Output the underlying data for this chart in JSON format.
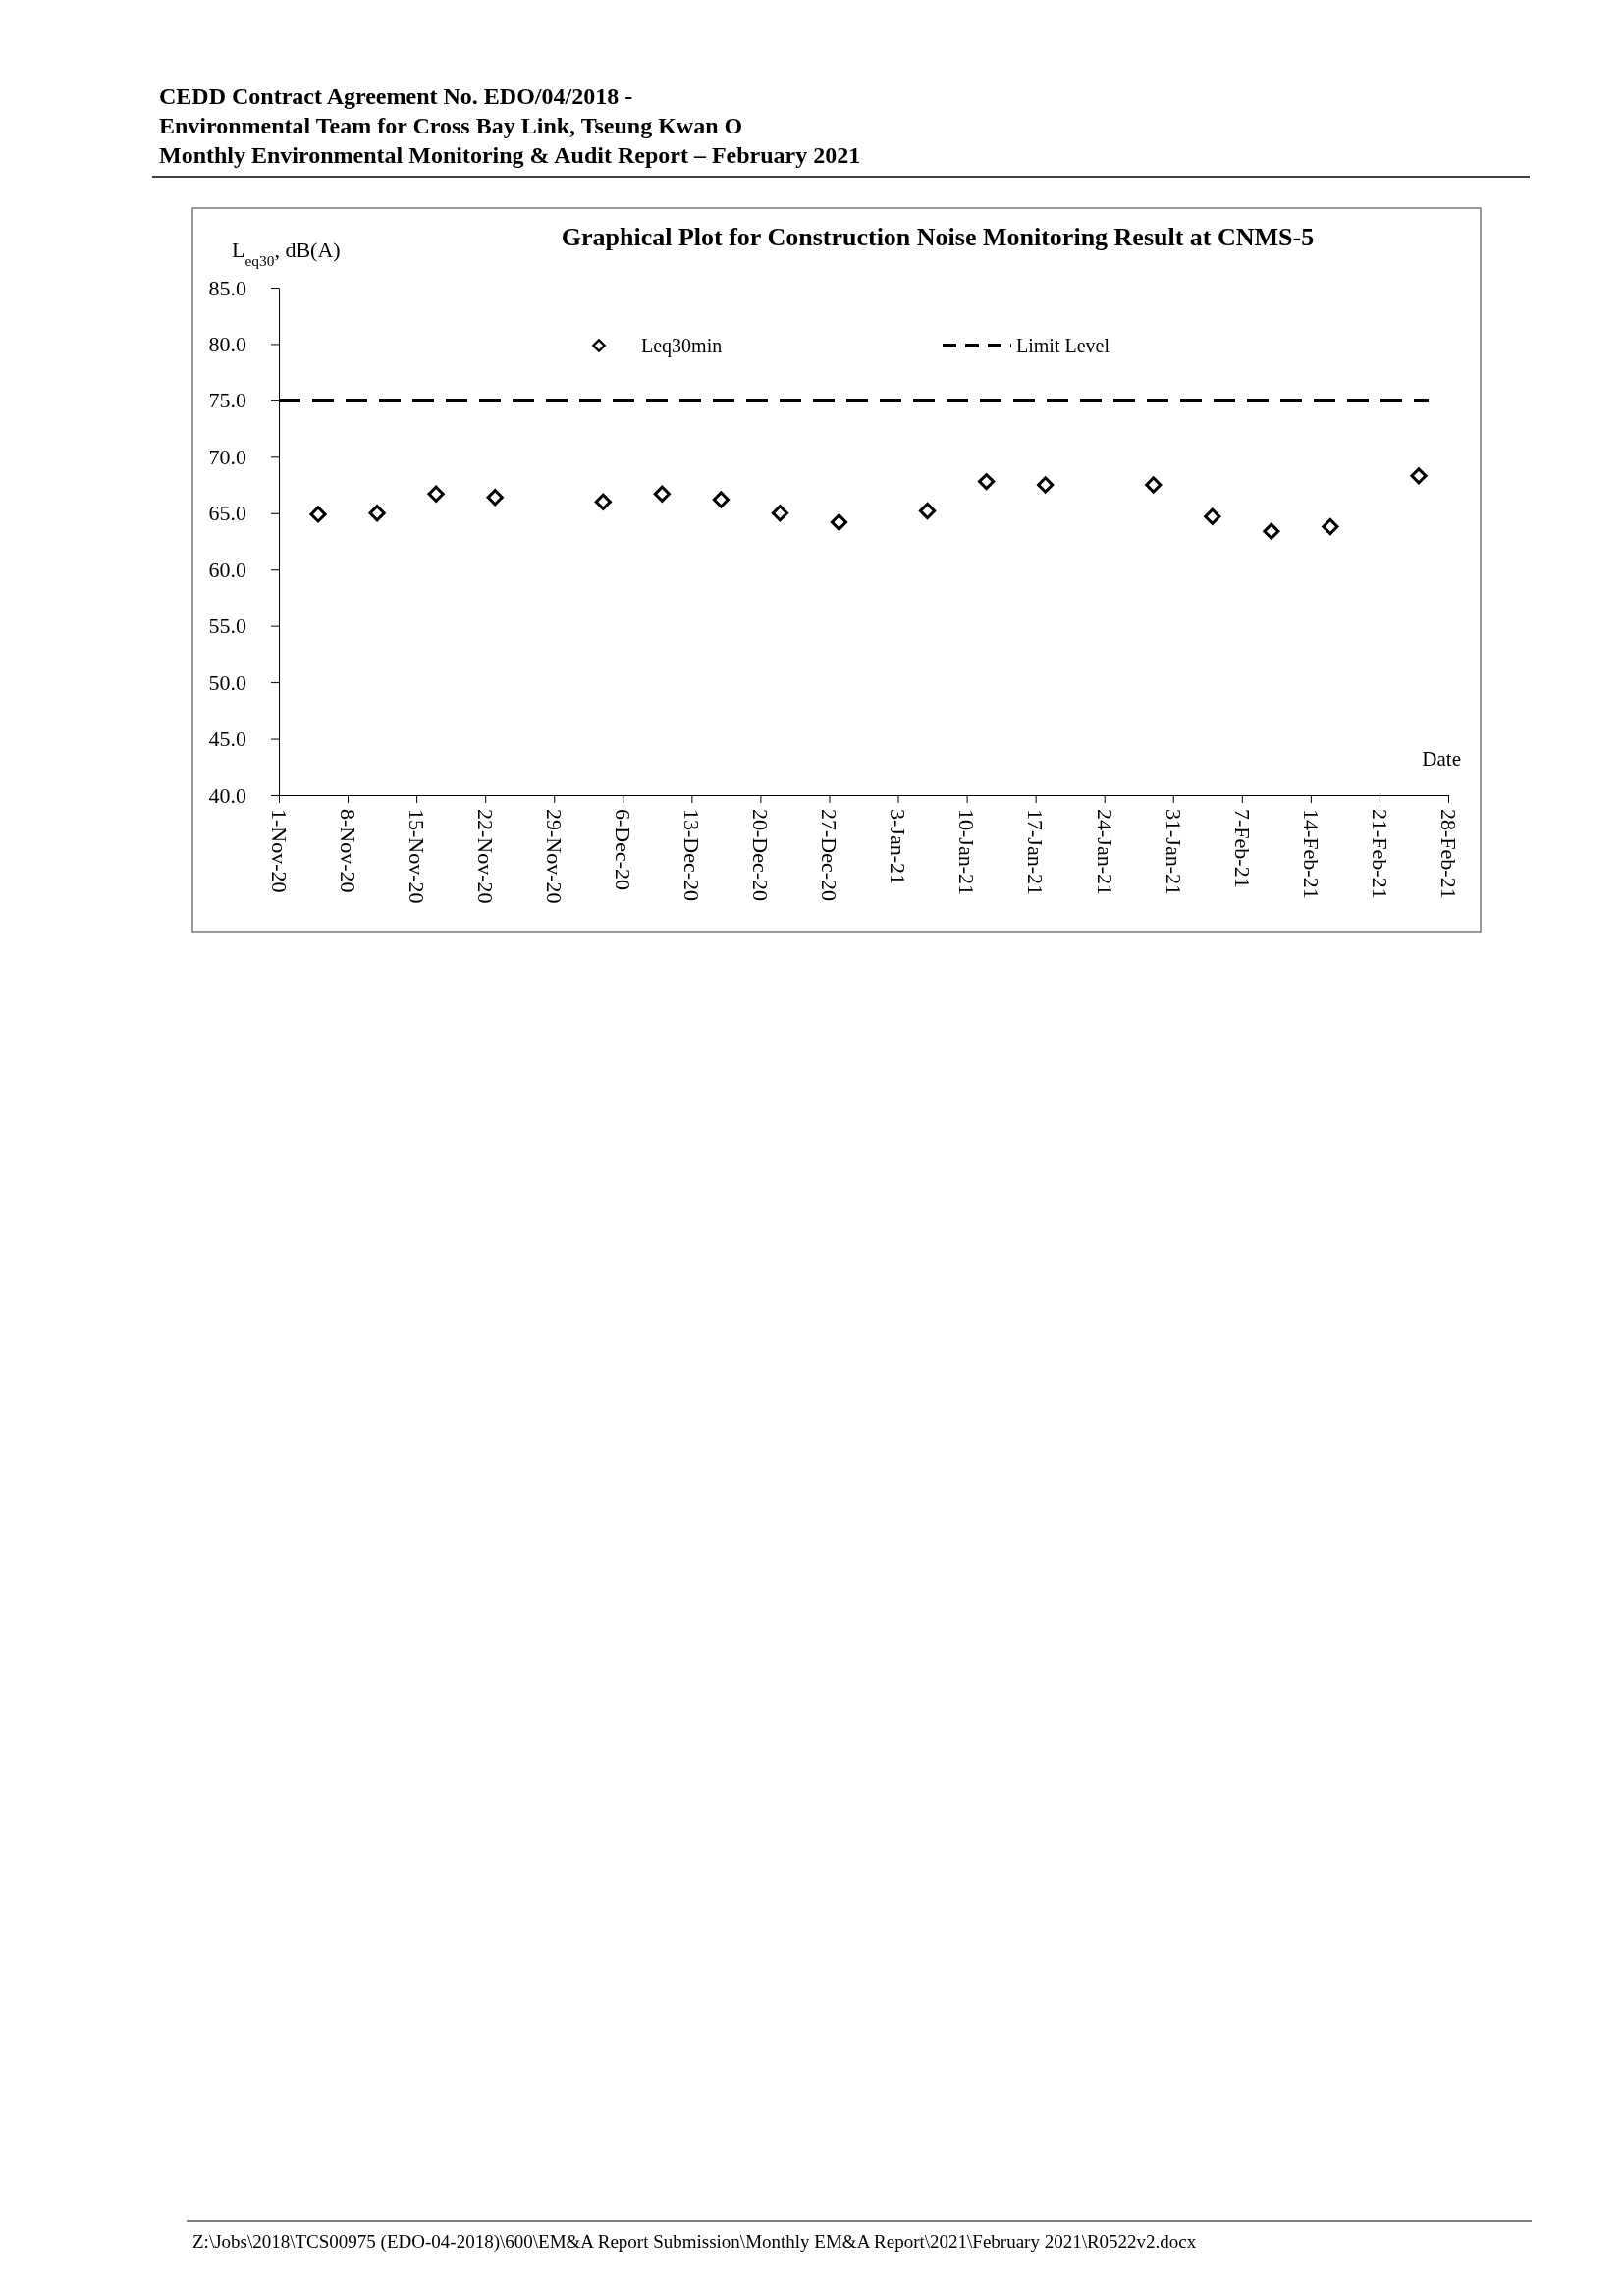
{
  "chart_data": {
    "type": "scatter",
    "title": "Graphical Plot for Construction Noise Monitoring Result at CNMS-5",
    "ylabel": "L$_{eq30}$, dB(A)",
    "xlabel": "Date",
    "annotations": [
      "CEDD Contract Agreement No. EDO/04/2018 -",
      "Environmental Team for Cross Bay Link, Tseung Kwan O",
      "Monthly Environmental Monitoring & Audit Report – February 2021",
      "Z:\\Jobs\\2018\\TCS00975 (EDO-04-2018)\\600\\EM&A Report Submission\\Monthly EM&A Report\\2021\\February 2021\\R0522v2.docx"
    ],
    "series": [
      {
        "name": "Leq30min",
        "marker": "diamond",
        "color": "#000000",
        "x": [
          "2020-11-05",
          "2020-11-11",
          "2020-11-17",
          "2020-11-23",
          "2020-12-04",
          "2020-12-10",
          "2020-12-16",
          "2020-12-22",
          "2020-12-28",
          "2021-01-06",
          "2021-01-12",
          "2021-01-18",
          "2021-01-29",
          "2021-02-04",
          "2021-02-10",
          "2021-02-16",
          "2021-02-25"
        ],
        "values": [
          64.9,
          65.0,
          66.7,
          66.4,
          66.0,
          66.7,
          66.2,
          65.0,
          64.2,
          65.2,
          67.8,
          67.5,
          67.5,
          64.7,
          63.4,
          63.8,
          68.3
        ]
      },
      {
        "name": "Limit Level",
        "type": "line",
        "line_style": "dashed",
        "marker": "none",
        "color": "#000000",
        "x": [
          "2020-11-01",
          "2021-02-26"
        ],
        "values": [
          75,
          75
        ]
      }
    ],
    "xlim": [
      "2020-11-01",
      "2021-02-28"
    ],
    "xticks": [
      {
        "value": "2020-11-01",
        "label": "1-Nov-20"
      },
      {
        "value": "2020-11-08",
        "label": "8-Nov-20"
      },
      {
        "value": "2020-11-15",
        "label": "15-Nov-20"
      },
      {
        "value": "2020-11-22",
        "label": "22-Nov-20"
      },
      {
        "value": "2020-11-29",
        "label": "29-Nov-20"
      },
      {
        "value": "2020-12-06",
        "label": "6-Dec-20"
      },
      {
        "value": "2020-12-13",
        "label": "13-Dec-20"
      },
      {
        "value": "2020-12-20",
        "label": "20-Dec-20"
      },
      {
        "value": "2020-12-27",
        "label": "27-Dec-20"
      },
      {
        "value": "2021-01-03",
        "label": "3-Jan-21"
      },
      {
        "value": "2021-01-10",
        "label": "10-Jan-21"
      },
      {
        "value": "2021-01-17",
        "label": "17-Jan-21"
      },
      {
        "value": "2021-01-24",
        "label": "24-Jan-21"
      },
      {
        "value": "2021-01-31",
        "label": "31-Jan-21"
      },
      {
        "value": "2021-02-07",
        "label": "7-Feb-21"
      },
      {
        "value": "2021-02-14",
        "label": "14-Feb-21"
      },
      {
        "value": "2021-02-21",
        "label": "21-Feb-21"
      },
      {
        "value": "2021-02-28",
        "label": "28-Feb-21"
      }
    ],
    "ylim": [
      40,
      85
    ],
    "yticks": [
      {
        "value": 40,
        "label": "40.0"
      },
      {
        "value": 45,
        "label": "45.0"
      },
      {
        "value": 50,
        "label": "50.0"
      },
      {
        "value": 55,
        "label": "55.0"
      },
      {
        "value": 60,
        "label": "60.0"
      },
      {
        "value": 65,
        "label": "65.0"
      },
      {
        "value": 70,
        "label": "70.0"
      },
      {
        "value": 75,
        "label": "75.0"
      },
      {
        "value": 80,
        "label": "80.0"
      },
      {
        "value": 85,
        "label": "85.0"
      }
    ],
    "grid": false,
    "legend": "top"
  }
}
